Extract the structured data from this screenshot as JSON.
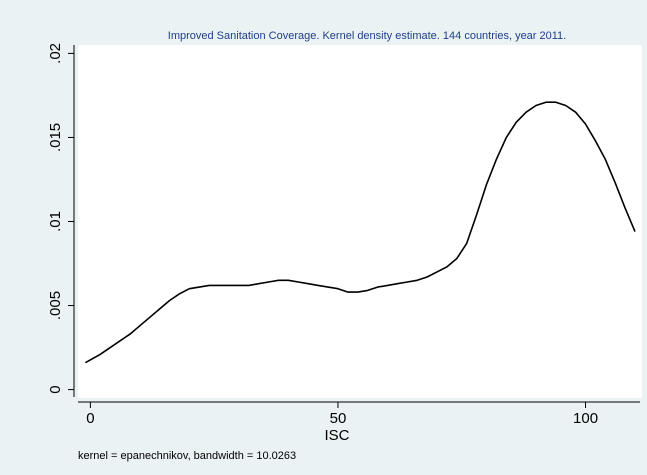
{
  "chart_data": {
    "type": "line",
    "title": "Improved Sanitation Coverage. Kernel density estimate. 144 countries, year 2011.",
    "xlabel": "ISC",
    "ylabel": "",
    "note": "kernel = epanechnikov, bandwidth = 10.0263",
    "xlim": [
      -2.5,
      111
    ],
    "ylim": [
      -0.0005,
      0.0205
    ],
    "x_ticks": [
      0,
      50,
      100
    ],
    "x_tick_labels": [
      "0",
      "50",
      "100"
    ],
    "y_ticks": [
      0,
      0.005,
      0.01,
      0.015,
      0.02
    ],
    "y_tick_labels": [
      "0",
      ".005",
      ".01",
      ".015",
      ".02"
    ],
    "grid": false,
    "legend": "none",
    "colors": {
      "line": "#000000",
      "title": "#1e3f8a",
      "plot_bg": "#ffffff",
      "page_bg": "#eaf2f3"
    },
    "series": [
      {
        "x": [
          -1,
          2,
          4,
          6,
          8,
          10,
          12,
          14,
          16,
          18,
          20,
          22,
          24,
          26,
          28,
          30,
          32,
          34,
          36,
          38,
          40,
          42,
          44,
          46,
          48,
          50,
          52,
          54,
          56,
          58,
          60,
          62,
          64,
          66,
          68,
          70,
          72,
          74,
          76,
          78,
          80,
          82,
          84,
          86,
          88,
          90,
          92,
          94,
          96,
          98,
          100,
          102,
          104,
          106,
          108,
          110
        ],
        "values": [
          0.0016,
          0.0021,
          0.0025,
          0.0029,
          0.0033,
          0.0038,
          0.0043,
          0.0048,
          0.0053,
          0.0057,
          0.006,
          0.0061,
          0.0062,
          0.0062,
          0.0062,
          0.0062,
          0.0062,
          0.0063,
          0.0064,
          0.0065,
          0.0065,
          0.0064,
          0.0063,
          0.0062,
          0.0061,
          0.006,
          0.0058,
          0.0058,
          0.0059,
          0.0061,
          0.0062,
          0.0063,
          0.0064,
          0.0065,
          0.0067,
          0.007,
          0.0073,
          0.0078,
          0.0087,
          0.0104,
          0.0122,
          0.0137,
          0.015,
          0.0159,
          0.0165,
          0.0169,
          0.0171,
          0.0171,
          0.0169,
          0.0165,
          0.0158,
          0.0148,
          0.0137,
          0.0123,
          0.0108,
          0.0094
        ]
      }
    ]
  }
}
